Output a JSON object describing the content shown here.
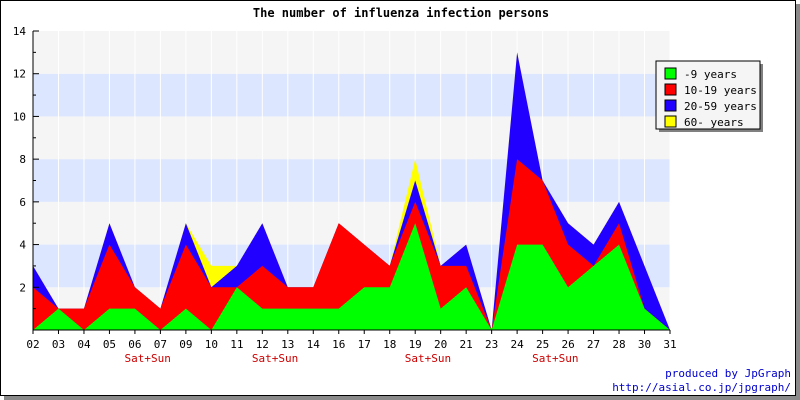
{
  "chart_data": {
    "type": "area",
    "stacked": true,
    "title": "The number of influenza infection persons",
    "categories": [
      "02",
      "03",
      "04",
      "05",
      "06",
      "07",
      "09",
      "10",
      "11",
      "12",
      "13",
      "14",
      "16",
      "17",
      "18",
      "19",
      "20",
      "21",
      "23",
      "24",
      "25",
      "26",
      "27",
      "28",
      "30",
      "31"
    ],
    "weekend_label": "Sat+Sun",
    "weekend_after_categories": [
      "06",
      "12",
      "19",
      "25"
    ],
    "series": [
      {
        "name": "-9 years",
        "color": "#00ff00",
        "values": [
          0,
          1,
          0,
          1,
          1,
          0,
          1,
          0,
          2,
          1,
          1,
          1,
          1,
          2,
          2,
          5,
          1,
          2,
          0,
          4,
          4,
          2,
          3,
          4,
          1,
          0
        ]
      },
      {
        "name": "10-19 years",
        "color": "#ff0000",
        "values": [
          2,
          0,
          1,
          3,
          1,
          1,
          3,
          2,
          0,
          2,
          1,
          1,
          4,
          2,
          1,
          1,
          2,
          1,
          0,
          4,
          3,
          2,
          0,
          1,
          0,
          0
        ]
      },
      {
        "name": "20-59 years",
        "color": "#2200ff",
        "values": [
          1,
          0,
          0,
          1,
          0,
          0,
          1,
          0,
          1,
          2,
          0,
          0,
          0,
          0,
          0,
          1,
          0,
          1,
          0,
          5,
          0,
          1,
          1,
          1,
          2,
          0
        ]
      },
      {
        "name": "60- years",
        "color": "#ffff00",
        "values": [
          0,
          0,
          0,
          0,
          0,
          0,
          0,
          1,
          0,
          0,
          0,
          0,
          0,
          0,
          0,
          1,
          0,
          0,
          0,
          0,
          0,
          0,
          0,
          0,
          0,
          0
        ]
      }
    ],
    "ylim": [
      0,
      14
    ],
    "yticks": [
      2,
      4,
      6,
      8,
      10,
      12,
      14
    ],
    "legend_position": "top-right",
    "band_colors": [
      "#f5f5f5",
      "#dce6ff"
    ]
  },
  "credits": {
    "line1": "produced by JpGraph",
    "line2": "http://asial.co.jp/jpgraph/"
  }
}
